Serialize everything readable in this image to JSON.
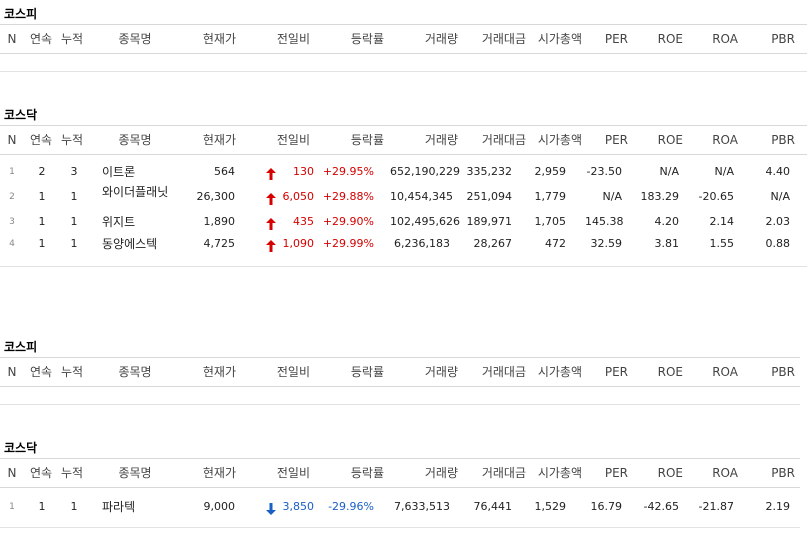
{
  "columns": [
    "N",
    "연속",
    "누적",
    "종목명",
    "현재가",
    "전일비",
    "등락률",
    "거래량",
    "거래대금",
    "시가총액",
    "PER",
    "ROE",
    "ROA",
    "PBR"
  ],
  "sections": [
    {
      "title": "코스피",
      "rows": []
    },
    {
      "title": "코스닥",
      "rows": [
        {
          "n": "1",
          "streak": "2",
          "total": "3",
          "name": "이트론",
          "price": "564",
          "change": "130",
          "dir": "up",
          "rate": "+29.95%",
          "volume": "652,190,229",
          "amount": "335,232",
          "mcap": "2,959",
          "per": "-23.50",
          "roe": "N/A",
          "roa": "N/A",
          "pbr": "4.40"
        },
        {
          "n": "2",
          "streak": "1",
          "total": "1",
          "name": "와이더플래닛",
          "price": "26,300",
          "change": "6,050",
          "dir": "up",
          "rate": "+29.88%",
          "volume": "10,454,345",
          "amount": "251,094",
          "mcap": "1,779",
          "per": "N/A",
          "roe": "183.29",
          "roa": "-20.65",
          "pbr": "N/A"
        },
        {
          "n": "3",
          "streak": "1",
          "total": "1",
          "name": "위지트",
          "price": "1,890",
          "change": "435",
          "dir": "up",
          "rate": "+29.90%",
          "volume": "102,495,626",
          "amount": "189,971",
          "mcap": "1,705",
          "per": "145.38",
          "roe": "4.20",
          "roa": "2.14",
          "pbr": "2.03"
        },
        {
          "n": "4",
          "streak": "1",
          "total": "1",
          "name": "동양에스텍",
          "price": "4,725",
          "change": "1,090",
          "dir": "up",
          "rate": "+29.99%",
          "volume": "6,236,183",
          "amount": "28,267",
          "mcap": "472",
          "per": "32.59",
          "roe": "3.81",
          "roa": "1.55",
          "pbr": "0.88"
        }
      ]
    },
    {
      "title": "코스피",
      "rows": []
    },
    {
      "title": "코스닥",
      "rows": [
        {
          "n": "1",
          "streak": "1",
          "total": "1",
          "name": "파라텍",
          "price": "9,000",
          "change": "3,850",
          "dir": "down",
          "rate": "-29.96%",
          "volume": "7,633,513",
          "amount": "76,441",
          "mcap": "1,529",
          "per": "16.79",
          "roe": "-42.65",
          "roa": "-21.87",
          "pbr": "2.19"
        }
      ]
    }
  ],
  "colors": {
    "up": "#d60000",
    "down": "#1a5fc4"
  },
  "icons": {
    "up": "arrow-up-icon",
    "down": "arrow-down-icon"
  }
}
